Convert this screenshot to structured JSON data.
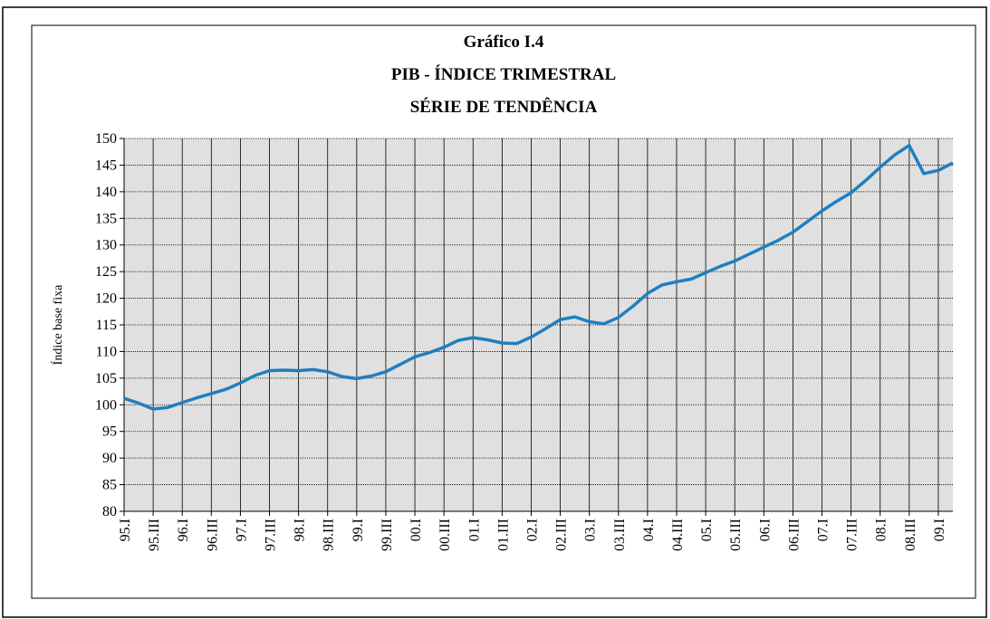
{
  "chart_data": {
    "type": "line",
    "title": "Gráfico I.4",
    "subtitle": [
      "PIB - ÍNDICE TRIMESTRAL",
      "SÉRIE DE TENDÊNCIA"
    ],
    "y_label": "Índice base fixa",
    "categories": [
      "95.I",
      null,
      "95.III",
      null,
      "96.I",
      null,
      "96.III",
      null,
      "97.I",
      null,
      "97.III",
      null,
      "98.I",
      null,
      "98.III",
      null,
      "99.I",
      null,
      "99.III",
      null,
      "00.I",
      null,
      "00.III",
      null,
      "01.I",
      null,
      "01.III",
      null,
      "02.I",
      null,
      "02.III",
      null,
      "03.I",
      null,
      "03.III",
      null,
      "04.I",
      null,
      "04.III",
      null,
      "05.I",
      null,
      "05.III",
      null,
      "06.I",
      null,
      "06.III",
      null,
      "07.I",
      null,
      "07.III",
      null,
      "08.I",
      null,
      "08.III",
      null,
      "09.I",
      null
    ],
    "series": [
      {
        "name": "PIB",
        "color": "#1f7fc0",
        "values": [
          101.2,
          100.3,
          99.2,
          99.5,
          100.4,
          101.3,
          102.1,
          102.9,
          104.1,
          105.5,
          106.4,
          106.5,
          106.4,
          106.6,
          106.2,
          105.3,
          104.9,
          105.4,
          106.2,
          107.6,
          109.0,
          109.8,
          110.8,
          112.1,
          112.6,
          112.2,
          111.6,
          111.5,
          112.7,
          114.3,
          116.0,
          116.5,
          115.6,
          115.2,
          116.4,
          118.5,
          120.9,
          122.5,
          123.1,
          123.6,
          124.8,
          126.0,
          127.0,
          128.3,
          129.6,
          130.9,
          132.4,
          134.4,
          136.4,
          138.2,
          139.8,
          142.1,
          144.6,
          146.9,
          148.7,
          143.4,
          144.0,
          145.4
        ]
      }
    ],
    "ylim": [
      80,
      150
    ],
    "yticks": [
      80,
      85,
      90,
      95,
      100,
      105,
      110,
      115,
      120,
      125,
      130,
      135,
      140,
      145,
      150
    ],
    "grid": true,
    "background": "#e0e0e0"
  }
}
